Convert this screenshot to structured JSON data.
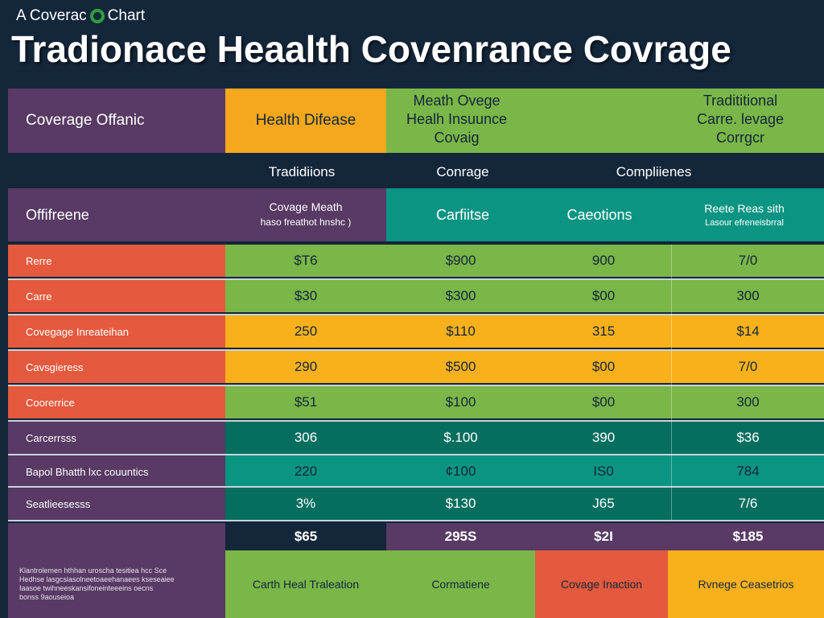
{
  "caption": {
    "text_before": "A Coverac",
    "text_after": "Chart"
  },
  "title": "Tradionace Heaalth Covenrance Covrage",
  "header_row1": {
    "col0": "Coverage Offanic",
    "col1": "Health Difease",
    "col2": [
      "Meath Ovege",
      "Healh Insuunce",
      "Covaig"
    ],
    "col4": [
      "Tradititional",
      "Carre. levage",
      "Corrgcr"
    ]
  },
  "header_row2": {
    "col1": "Tradidiions",
    "col2": "Conrage",
    "col3": "Compliienes"
  },
  "header_row3": {
    "col0": "Offifreene",
    "col1": [
      "Covage Meath",
      "haso freathot hnshc )"
    ],
    "col2": "Carfiitse",
    "col3": "Caeotions",
    "col4": [
      "Reete Reas sith",
      "Lasour efreneisbrral"
    ]
  },
  "rows": [
    {
      "label": "Rerre",
      "cells": [
        "$T6",
        "$900",
        "900",
        "7/0"
      ]
    },
    {
      "label": "Carre",
      "cells": [
        "$30",
        "$300",
        "$00",
        "300"
      ]
    },
    {
      "label": "Covegage Inreateihan",
      "cells": [
        "250",
        "$110",
        "315",
        "$14"
      ]
    },
    {
      "label": "Cavsgieress",
      "cells": [
        "290",
        "$500",
        "$00",
        "7/0"
      ]
    },
    {
      "label": "Coorerrice",
      "cells": [
        "$51",
        "$100",
        "$00",
        "300"
      ]
    },
    {
      "label": "Carcerrsss",
      "cells": [
        "306",
        "$.100",
        "390",
        "$36"
      ]
    },
    {
      "label": "Bapol Bhatth lxc couuntics",
      "cells": [
        "220",
        "¢100",
        "IS0",
        "784"
      ]
    },
    {
      "label": "Seatlieesesss",
      "cells": [
        "3%",
        "$130",
        "J65",
        "7/6"
      ]
    }
  ],
  "total_row": {
    "cells": [
      "$65",
      "295S",
      "$2I",
      "$185"
    ]
  },
  "footer": {
    "note": [
      "Klantrolemen hthhan uroscha tesitiea hcc Sce",
      "Hedhse lasgcsiasolneetoaeehanaees kseseaiee",
      "Iaasoe twihneeskansifoneinteeeins oecns",
      "bonss 9aouseioa"
    ],
    "col1": "Carth Heal Traleation",
    "col2": "Cormatiene",
    "col3": "Covage Inaction",
    "col4": "Rvnege Ceasetrios"
  },
  "colors": {
    "background": "#14263a",
    "purple": "#583a64",
    "orange": "#f6a81c",
    "light_green": "#7ab648",
    "teal": "#0a9482",
    "dark_teal": "#056e5f",
    "red": "#e55a3e",
    "yellow": "#f9b11b",
    "logo_green": "#2e9e3e"
  }
}
